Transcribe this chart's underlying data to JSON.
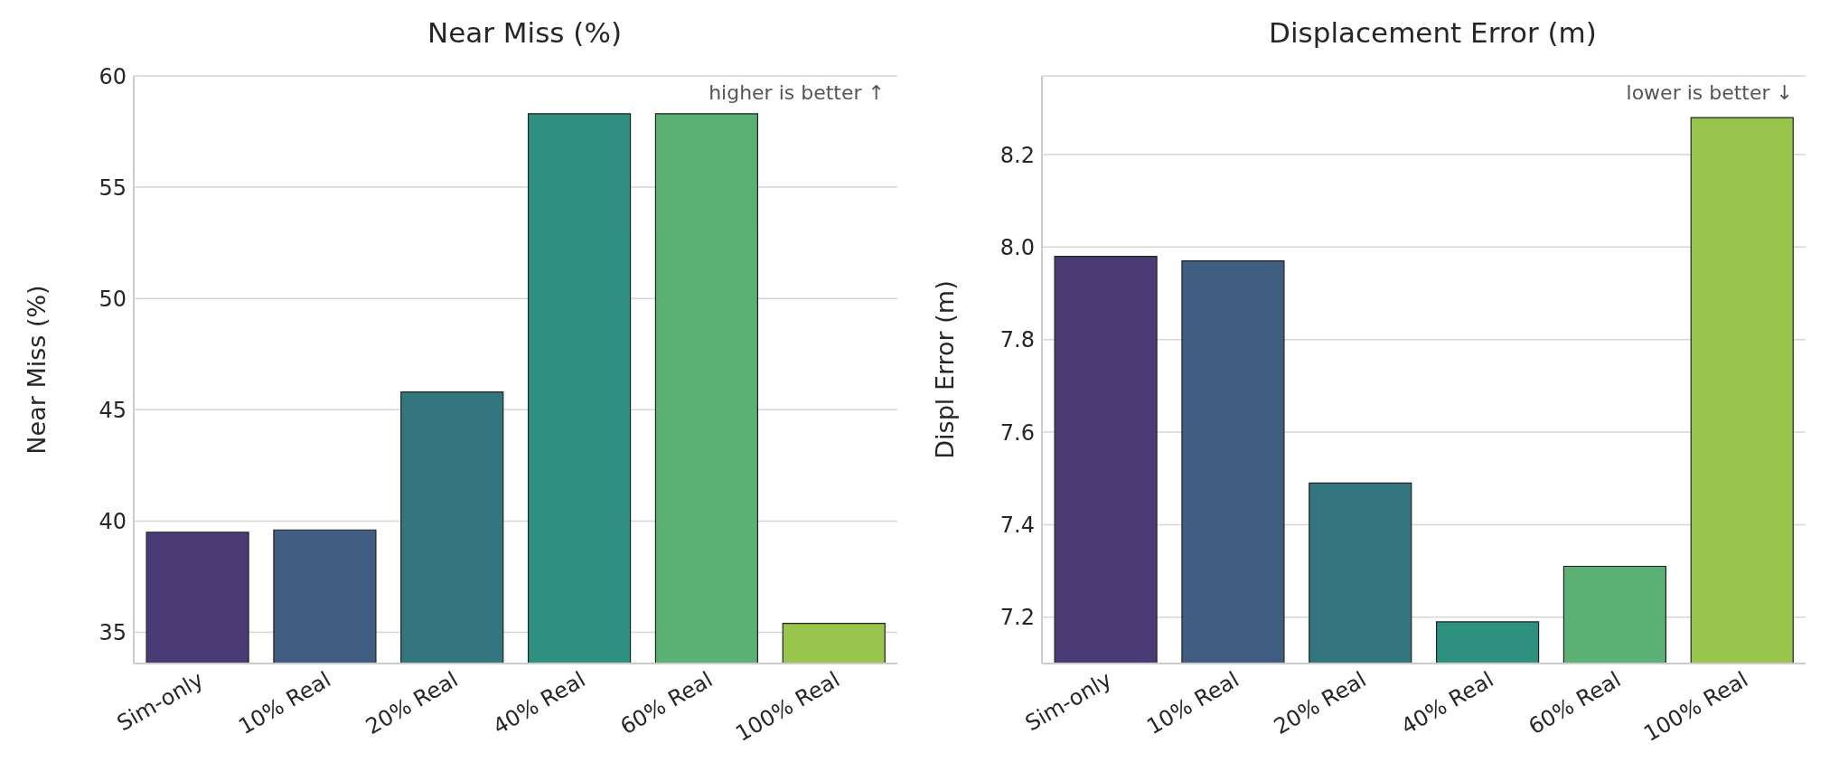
{
  "chart_data": [
    {
      "type": "bar",
      "title": "Near Miss (%)",
      "ylabel": "Near Miss (%)",
      "categories": [
        "Sim-only",
        "10% Real",
        "20% Real",
        "40% Real",
        "60% Real",
        "100% Real"
      ],
      "values": [
        39.5,
        39.6,
        45.8,
        58.3,
        58.3,
        35.4
      ],
      "colors": [
        "#4a3a75",
        "#3f5e82",
        "#33767f",
        "#2e9180",
        "#5ab173",
        "#9ac54c"
      ],
      "ylim": [
        33.6,
        60
      ],
      "yticks": [
        35,
        40,
        45,
        50,
        55,
        60
      ],
      "grid": "y",
      "annotations": [
        "higher is better ↑"
      ]
    },
    {
      "type": "bar",
      "title": "Displacement Error (m)",
      "ylabel": "Displ Error (m)",
      "categories": [
        "Sim-only",
        "10% Real",
        "20% Real",
        "40% Real",
        "60% Real",
        "100% Real"
      ],
      "values": [
        7.98,
        7.97,
        7.49,
        7.19,
        7.31,
        8.28
      ],
      "colors": [
        "#4a3a75",
        "#3f5e82",
        "#33767f",
        "#2e9180",
        "#5ab173",
        "#9ac54c"
      ],
      "ylim": [
        7.1,
        8.37
      ],
      "yticks": [
        7.2,
        7.4,
        7.6,
        7.8,
        {
          "value": 8,
          "label": "8.0"
        },
        8.2
      ],
      "grid": "y",
      "annotations": [
        "lower is better ↓"
      ]
    }
  ]
}
